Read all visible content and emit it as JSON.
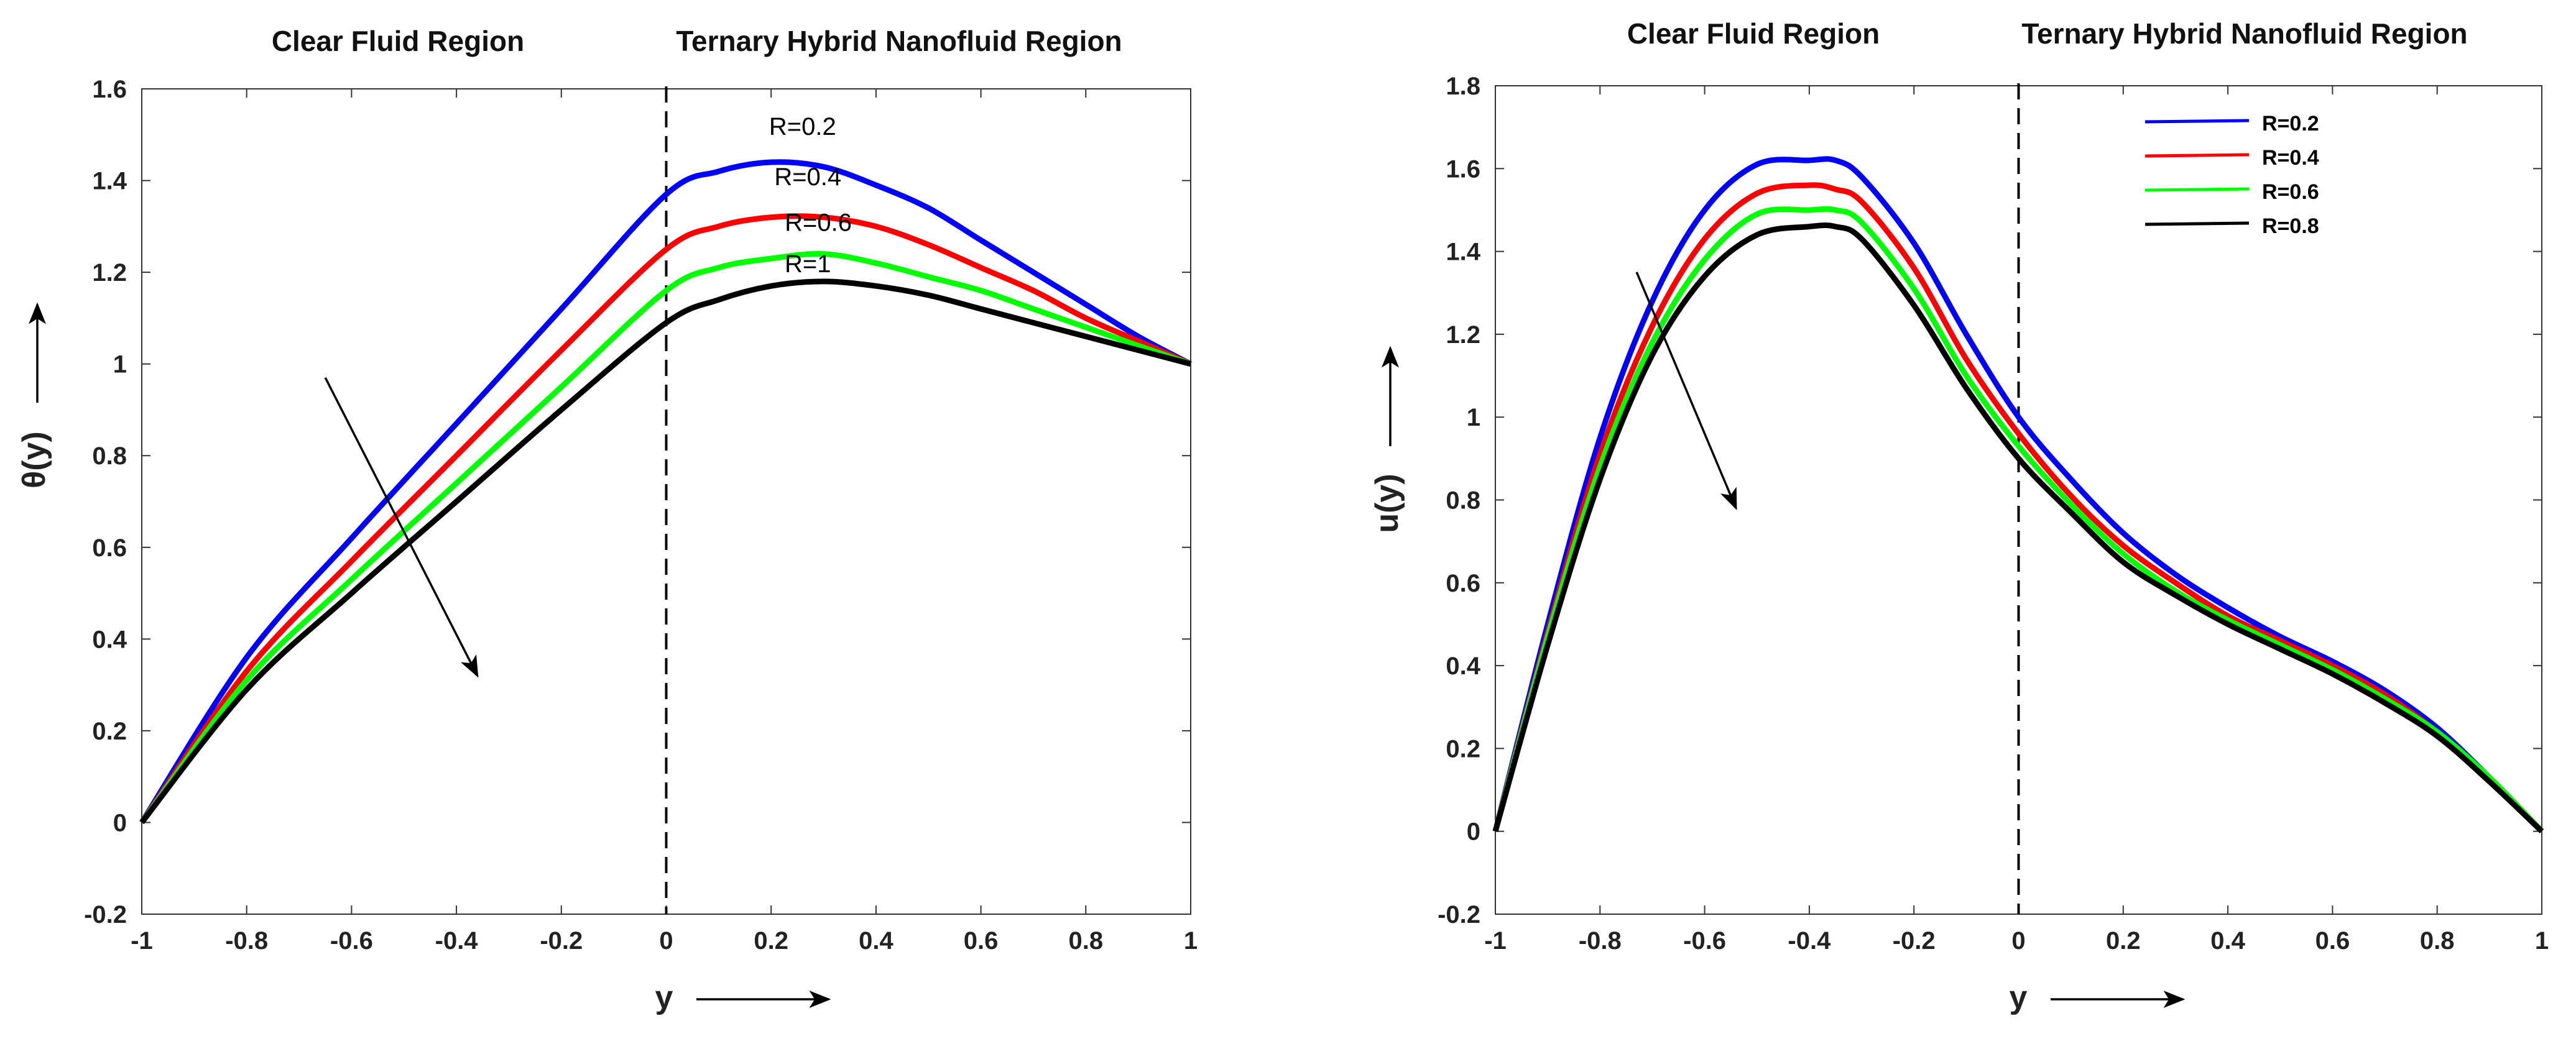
{
  "chart_data": [
    {
      "type": "line",
      "xlabel": "y",
      "ylabel": "θ(y)",
      "xlim": [
        -1,
        1
      ],
      "ylim": [
        -0.2,
        1.6
      ],
      "xticks": [
        "-1",
        "-0.8",
        "-0.6",
        "-0.4",
        "-0.2",
        "0",
        "0.2",
        "0.4",
        "0.6",
        "0.8",
        "1"
      ],
      "yticks": [
        "-0.2",
        "0",
        "0.2",
        "0.4",
        "0.6",
        "0.8",
        "1",
        "1.2",
        "1.4",
        "1.6"
      ],
      "regions": [
        "Clear Fluid Region",
        "Ternary Hybrid Nanofluid Region"
      ],
      "interface_x": 0,
      "annotation_arrow": {
        "from": [
          -0.65,
          0.97
        ],
        "to": [
          -0.36,
          0.32
        ]
      },
      "series": [
        {
          "name": "R=0.2",
          "color": "#0000ff",
          "label_at": [
            0.26,
            1.5
          ],
          "x": [
            -1,
            -0.8,
            -0.6,
            -0.4,
            -0.2,
            0,
            0.1,
            0.2,
            0.3,
            0.4,
            0.5,
            0.6,
            0.7,
            0.8,
            0.9,
            1
          ],
          "y": [
            0,
            0.36,
            0.62,
            0.87,
            1.12,
            1.37,
            1.42,
            1.44,
            1.43,
            1.39,
            1.34,
            1.27,
            1.2,
            1.13,
            1.06,
            1.0
          ]
        },
        {
          "name": "R=0.4",
          "color": "#ff0000",
          "label_at": [
            0.27,
            1.39
          ],
          "x": [
            -1,
            -0.8,
            -0.6,
            -0.4,
            -0.2,
            0,
            0.1,
            0.2,
            0.3,
            0.4,
            0.5,
            0.6,
            0.7,
            0.8,
            0.9,
            1
          ],
          "y": [
            0,
            0.33,
            0.57,
            0.8,
            1.03,
            1.25,
            1.3,
            1.32,
            1.32,
            1.3,
            1.26,
            1.21,
            1.16,
            1.1,
            1.05,
            1.0
          ]
        },
        {
          "name": "R=0.6",
          "color": "#00ff00",
          "label_at": [
            0.29,
            1.29
          ],
          "x": [
            -1,
            -0.8,
            -0.6,
            -0.4,
            -0.2,
            0,
            0.1,
            0.2,
            0.3,
            0.4,
            0.5,
            0.6,
            0.7,
            0.8,
            0.9,
            1
          ],
          "y": [
            0,
            0.31,
            0.53,
            0.74,
            0.95,
            1.16,
            1.21,
            1.23,
            1.24,
            1.22,
            1.19,
            1.16,
            1.12,
            1.08,
            1.04,
            1.0
          ]
        },
        {
          "name": "R=1",
          "color": "#000000",
          "label_at": [
            0.27,
            1.2
          ],
          "x": [
            -1,
            -0.8,
            -0.6,
            -0.4,
            -0.2,
            0,
            0.1,
            0.2,
            0.3,
            0.4,
            0.5,
            0.6,
            0.7,
            0.8,
            0.9,
            1
          ],
          "y": [
            0,
            0.29,
            0.5,
            0.7,
            0.9,
            1.09,
            1.14,
            1.17,
            1.18,
            1.17,
            1.15,
            1.12,
            1.09,
            1.06,
            1.03,
            1.0
          ]
        }
      ]
    },
    {
      "type": "line",
      "xlabel": "y",
      "ylabel": "u(y)",
      "xlim": [
        -1,
        1
      ],
      "ylim": [
        -0.2,
        1.8
      ],
      "xticks": [
        "-1",
        "-0.8",
        "-0.6",
        "-0.4",
        "-0.2",
        "0",
        "0.2",
        "0.4",
        "0.6",
        "0.8",
        "1"
      ],
      "yticks": [
        "-0.2",
        "0",
        "0.2",
        "0.4",
        "0.6",
        "0.8",
        "1",
        "1.2",
        "1.4",
        "1.6",
        "1.8"
      ],
      "regions": [
        "Clear Fluid Region",
        "Ternary Hybrid Nanofluid Region"
      ],
      "interface_x": 0,
      "legend": "top-right",
      "annotation_arrow": {
        "from": [
          -0.73,
          1.35
        ],
        "to": [
          -0.54,
          0.78
        ]
      },
      "series": [
        {
          "name": "R=0.2",
          "color": "#0000ff",
          "x": [
            -1,
            -0.9,
            -0.8,
            -0.7,
            -0.6,
            -0.5,
            -0.4,
            -0.35,
            -0.3,
            -0.2,
            -0.1,
            0,
            0.1,
            0.2,
            0.3,
            0.4,
            0.5,
            0.6,
            0.7,
            0.8,
            0.9,
            1
          ],
          "y": [
            0,
            0.5,
            0.95,
            1.28,
            1.5,
            1.61,
            1.62,
            1.62,
            1.58,
            1.42,
            1.2,
            1.0,
            0.85,
            0.72,
            0.62,
            0.54,
            0.47,
            0.41,
            0.34,
            0.25,
            0.13,
            0
          ]
        },
        {
          "name": "R=0.4",
          "color": "#ff0000",
          "x": [
            -1,
            -0.9,
            -0.8,
            -0.7,
            -0.6,
            -0.5,
            -0.4,
            -0.35,
            -0.3,
            -0.2,
            -0.1,
            0,
            0.1,
            0.2,
            0.3,
            0.4,
            0.5,
            0.6,
            0.7,
            0.8,
            0.9,
            1
          ],
          "y": [
            0,
            0.48,
            0.91,
            1.22,
            1.43,
            1.54,
            1.56,
            1.55,
            1.52,
            1.36,
            1.14,
            0.96,
            0.81,
            0.69,
            0.6,
            0.52,
            0.46,
            0.4,
            0.33,
            0.24,
            0.13,
            0
          ]
        },
        {
          "name": "R=0.6",
          "color": "#00ff00",
          "x": [
            -1,
            -0.9,
            -0.8,
            -0.7,
            -0.6,
            -0.5,
            -0.4,
            -0.35,
            -0.3,
            -0.2,
            -0.1,
            0,
            0.1,
            0.2,
            0.3,
            0.4,
            0.5,
            0.6,
            0.7,
            0.8,
            0.9,
            1
          ],
          "y": [
            0,
            0.47,
            0.88,
            1.18,
            1.38,
            1.49,
            1.5,
            1.5,
            1.47,
            1.31,
            1.1,
            0.93,
            0.79,
            0.67,
            0.58,
            0.51,
            0.45,
            0.39,
            0.32,
            0.24,
            0.13,
            0
          ]
        },
        {
          "name": "R=0.8",
          "color": "#000000",
          "x": [
            -1,
            -0.9,
            -0.8,
            -0.7,
            -0.6,
            -0.5,
            -0.4,
            -0.35,
            -0.3,
            -0.2,
            -0.1,
            0,
            0.1,
            0.2,
            0.3,
            0.4,
            0.5,
            0.6,
            0.7,
            0.8,
            0.9,
            1
          ],
          "y": [
            0,
            0.45,
            0.85,
            1.15,
            1.34,
            1.44,
            1.46,
            1.46,
            1.43,
            1.27,
            1.07,
            0.9,
            0.77,
            0.65,
            0.57,
            0.5,
            0.44,
            0.38,
            0.31,
            0.23,
            0.12,
            0
          ]
        }
      ]
    }
  ]
}
